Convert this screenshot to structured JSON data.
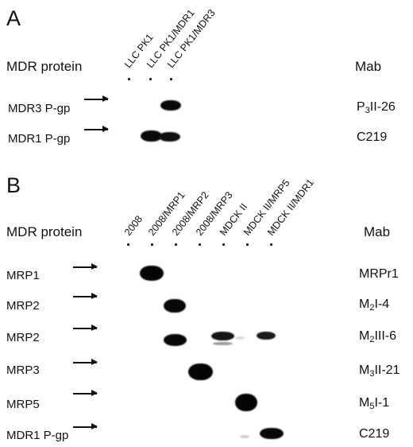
{
  "panel_a": {
    "letter": "A",
    "header_left": "MDR protein",
    "header_right": "Mab",
    "lanes": [
      "LLC PK1",
      "LLC PK1/MDR1",
      "LLC PK1/MDR3"
    ],
    "rows": [
      {
        "protein": "MDR3 P-gp",
        "mab_main": "P",
        "mab_sub": "3",
        "mab_rest": "II-26"
      },
      {
        "protein": "MDR1 P-gp",
        "mab_main": "C219",
        "mab_sub": "",
        "mab_rest": ""
      }
    ]
  },
  "panel_b": {
    "letter": "B",
    "header_left": "MDR protein",
    "header_right": "Mab",
    "lanes": [
      "2008",
      "2008/MRP1",
      "2008/MRP2",
      "2008/MRP3",
      "MDCK II",
      "MDCK II/MRP5",
      "MDCK II/MDR1"
    ],
    "rows": [
      {
        "protein": "MRP1",
        "mab_main": "MRPr1",
        "mab_sub": "",
        "mab_rest": ""
      },
      {
        "protein": "MRP2",
        "mab_main": "M",
        "mab_sub": "2",
        "mab_rest": "I-4"
      },
      {
        "protein": "MRP2",
        "mab_main": "M",
        "mab_sub": "2",
        "mab_rest": "III-6"
      },
      {
        "protein": "MRP3",
        "mab_main": "M",
        "mab_sub": "3",
        "mab_rest": "II-21"
      },
      {
        "protein": "MRP5",
        "mab_main": "M",
        "mab_sub": "5",
        "mab_rest": "I-1"
      },
      {
        "protein": "MDR1 P-gp",
        "mab_main": "C219",
        "mab_sub": "",
        "mab_rest": ""
      }
    ]
  },
  "colors": {
    "text": "#111111",
    "band": "#0a0a0a",
    "background": "#ffffff"
  }
}
